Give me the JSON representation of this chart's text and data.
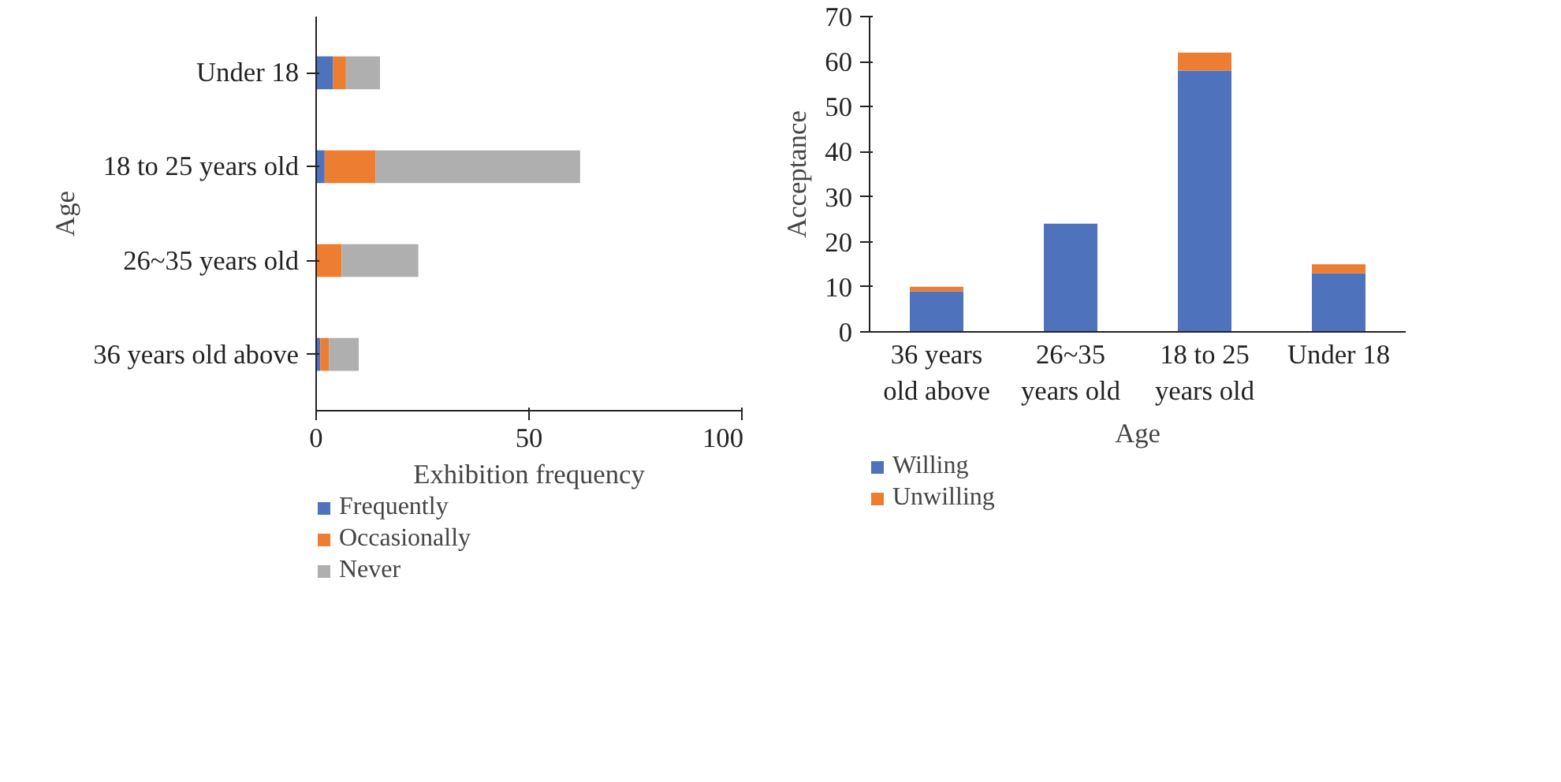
{
  "chart_data": [
    {
      "type": "bar",
      "orientation": "horizontal",
      "stacked": true,
      "xlabel": "Exhibition frequency",
      "ylabel": "Age",
      "categories": [
        "Under 18",
        "18 to 25 years old",
        "26~35 years old",
        "36 years old above"
      ],
      "series": [
        {
          "name": "Frequently",
          "color": "#4f72bd",
          "values": [
            4,
            2,
            0,
            1
          ]
        },
        {
          "name": "Occasionally",
          "color": "#ed7d31",
          "values": [
            3,
            12,
            6,
            2
          ]
        },
        {
          "name": "Never",
          "color": "#afafaf",
          "values": [
            8,
            48,
            18,
            7
          ]
        }
      ],
      "xlim": [
        0,
        100
      ],
      "xticks": [
        0,
        50,
        100
      ],
      "legend": "bottom"
    },
    {
      "type": "bar",
      "stacked": true,
      "xlabel": "Age",
      "ylabel": "Acceptance",
      "categories": [
        "36 years old above",
        "26~35 years old",
        "18 to 25 years old",
        "Under 18"
      ],
      "series": [
        {
          "name": "Willing",
          "color": "#4f72bd",
          "values": [
            9,
            24,
            58,
            13
          ]
        },
        {
          "name": "Unwilling",
          "color": "#ed7d31",
          "values": [
            1,
            0,
            4,
            2
          ]
        }
      ],
      "ylim": [
        0,
        70
      ],
      "yticks": [
        0,
        10,
        20,
        30,
        40,
        50,
        60,
        70
      ],
      "legend": "bottom"
    }
  ]
}
